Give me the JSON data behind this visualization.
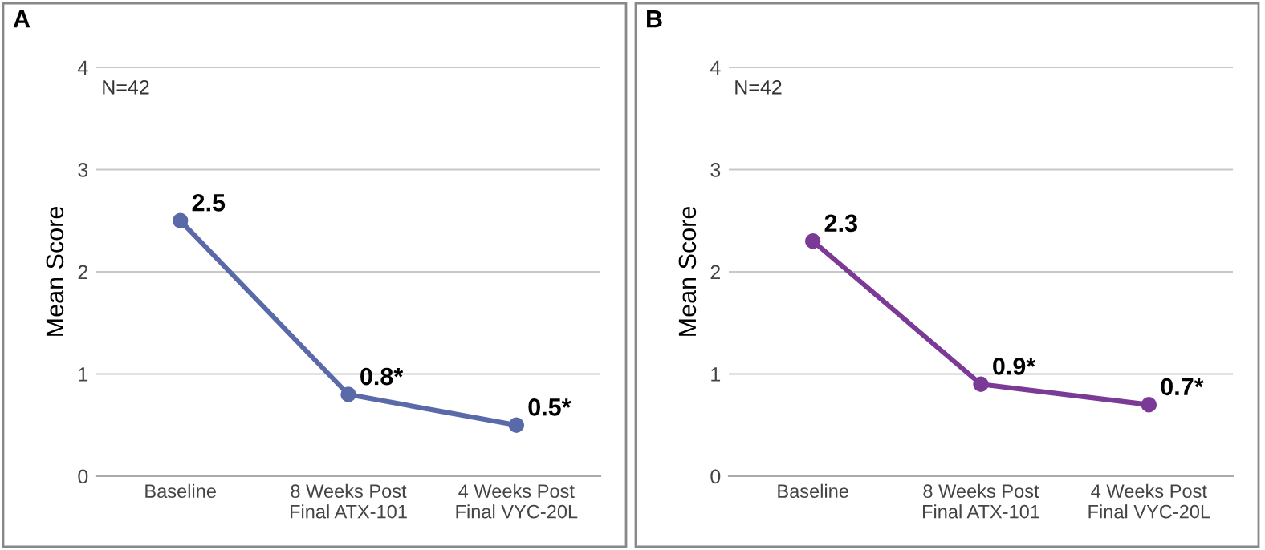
{
  "chart_data": [
    {
      "type": "line",
      "title": "A",
      "ylabel": "Mean Score",
      "categories": [
        "Baseline",
        "8 Weeks Post\nFinal ATX-101",
        "4 Weeks Post\nFinal VYC-20L"
      ],
      "series": [
        {
          "color": "#5a6aa8",
          "values": [
            2.5,
            0.8,
            0.5
          ],
          "value_labels": [
            "2.5",
            "0.8*",
            "0.5*"
          ]
        }
      ],
      "ylim": [
        0,
        4
      ],
      "yticks": [
        0,
        1,
        2,
        3,
        4
      ],
      "grid": "y",
      "marker": "circle",
      "line_style": "solid",
      "annotations": [
        "N=42"
      ]
    },
    {
      "type": "line",
      "title": "B",
      "ylabel": "Mean Score",
      "categories": [
        "Baseline",
        "8 Weeks Post\nFinal ATX-101",
        "4 Weeks Post\nFinal VYC-20L"
      ],
      "series": [
        {
          "color": "#7b3a96",
          "values": [
            2.3,
            0.9,
            0.7
          ],
          "value_labels": [
            "2.3",
            "0.9*",
            "0.7*"
          ]
        }
      ],
      "ylim": [
        0,
        4
      ],
      "yticks": [
        0,
        1,
        2,
        3,
        4
      ],
      "grid": "y",
      "marker": "circle",
      "line_style": "solid",
      "annotations": [
        "N=42"
      ]
    }
  ]
}
